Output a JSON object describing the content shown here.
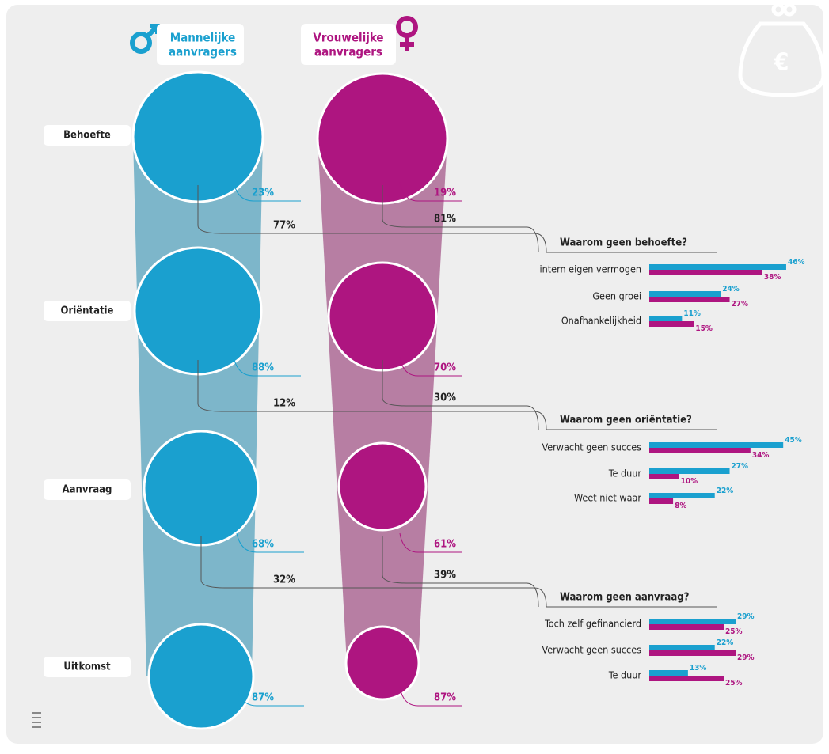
{
  "header": {
    "male": [
      "Mannelijke",
      "aanvragers"
    ],
    "female": [
      "Vrouwelijke",
      "aanvragers"
    ]
  },
  "stages": [
    {
      "label": "Behoefte",
      "male": {
        "value": 23,
        "label": "23%"
      },
      "female": {
        "value": 19,
        "label": "19%"
      },
      "male_rest": {
        "value": 77,
        "label": "77%"
      },
      "female_rest": {
        "value": 81,
        "label": "81%"
      }
    },
    {
      "label": "Oriëntatie",
      "male": {
        "value": 88,
        "label": "88%"
      },
      "female": {
        "value": 70,
        "label": "70%"
      },
      "male_rest": {
        "value": 12,
        "label": "12%"
      },
      "female_rest": {
        "value": 30,
        "label": "30%"
      }
    },
    {
      "label": "Aanvraag",
      "male": {
        "value": 68,
        "label": "68%"
      },
      "female": {
        "value": 61,
        "label": "61%"
      },
      "male_rest": {
        "value": 32,
        "label": "32%"
      },
      "female_rest": {
        "value": 39,
        "label": "39%"
      }
    },
    {
      "label": "Uitkomst",
      "male": {
        "value": 87,
        "label": "87%"
      },
      "female": {
        "value": 87,
        "label": "87%"
      }
    }
  ],
  "reasons": [
    {
      "title": "Waarom geen behoefte?",
      "categories": [
        "intern eigen vermogen",
        "Geen groei",
        "Onafhankelijkheid"
      ],
      "male": [
        46,
        24,
        11
      ],
      "male_labels": [
        "46%",
        "24%",
        "11%"
      ],
      "female": [
        38,
        27,
        15
      ],
      "female_labels": [
        "38%",
        "27%",
        "15%"
      ]
    },
    {
      "title": "Waarom geen oriëntatie?",
      "categories": [
        "Verwacht geen succes",
        "Te duur",
        "Weet niet waar"
      ],
      "male": [
        45,
        27,
        22
      ],
      "male_labels": [
        "45%",
        "27%",
        "22%"
      ],
      "female": [
        34,
        10,
        8
      ],
      "female_labels": [
        "34%",
        "10%",
        "8%"
      ]
    },
    {
      "title": "Waarom geen aanvraag?",
      "categories": [
        "Toch zelf gefinancierd",
        "Verwacht geen succes",
        "Te duur"
      ],
      "male": [
        29,
        22,
        13
      ],
      "male_labels": [
        "29%",
        "22%",
        "13%"
      ],
      "female": [
        25,
        29,
        25
      ],
      "female_labels": [
        "25%",
        "29%",
        "25%"
      ]
    }
  ],
  "colors": {
    "male": "#1aa0cf",
    "female": "#ae1580",
    "male_band": "#7db6ca",
    "female_band": "#b77ea3"
  }
}
